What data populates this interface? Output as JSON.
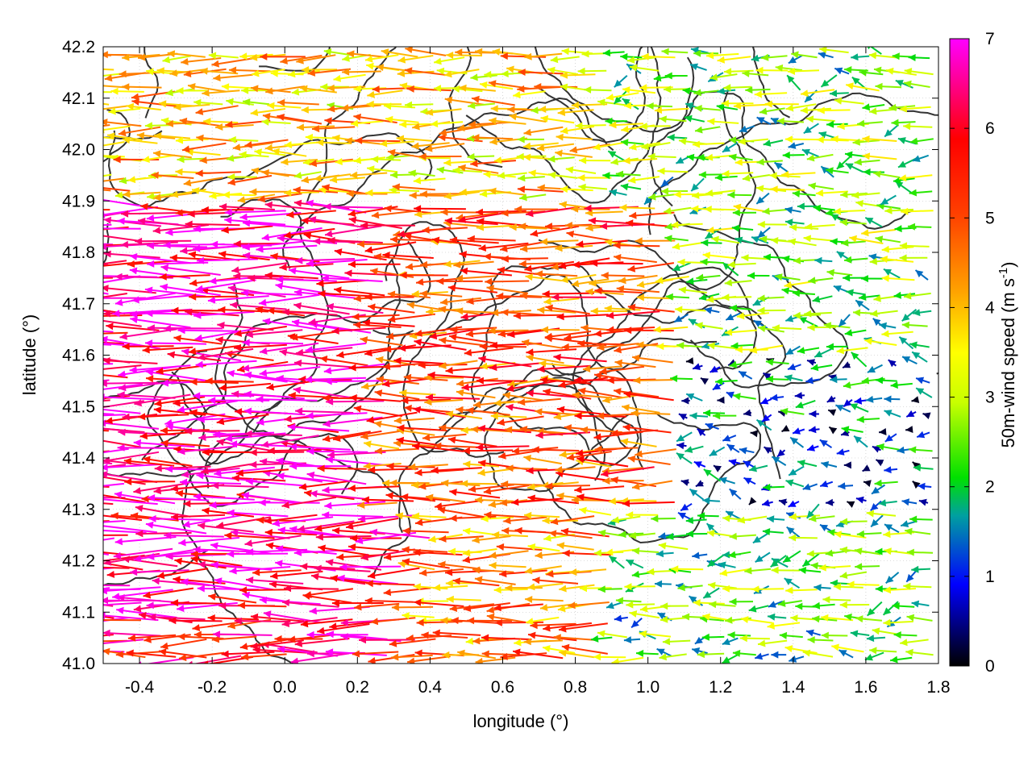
{
  "chart_data": {
    "type": "vector-field",
    "xlabel": "longitude (°)",
    "ylabel": "latitude (°)",
    "xlim": [
      -0.5,
      1.8
    ],
    "ylim": [
      41.0,
      42.2
    ],
    "xticks": [
      "-0.4",
      "-0.2",
      "0.0",
      "0.2",
      "0.4",
      "0.6",
      "0.8",
      "1.0",
      "1.2",
      "1.4",
      "1.6",
      "1.8"
    ],
    "xtick_values": [
      -0.4,
      -0.2,
      0.0,
      0.2,
      0.4,
      0.6,
      0.8,
      1.0,
      1.2,
      1.4,
      1.6,
      1.8
    ],
    "yticks": [
      "41.0",
      "41.1",
      "41.2",
      "41.3",
      "41.4",
      "41.5",
      "41.6",
      "41.7",
      "41.8",
      "41.9",
      "42.0",
      "42.1",
      "42.2"
    ],
    "ytick_values": [
      41.0,
      41.1,
      41.2,
      41.3,
      41.4,
      41.5,
      41.6,
      41.7,
      41.8,
      41.9,
      42.0,
      42.1,
      42.2
    ],
    "grid": true,
    "colorbar": {
      "label_main": "50m-wind speed (m s",
      "label_sup": "-1",
      "label_end": ")",
      "range": [
        0,
        7
      ],
      "ticks": [
        "0",
        "1",
        "2",
        "3",
        "4",
        "5",
        "6",
        "7"
      ],
      "tick_values": [
        0,
        1,
        2,
        3,
        4,
        5,
        6,
        7
      ],
      "colors": [
        "#000000",
        "#0000ff",
        "#00b0b0",
        "#00e000",
        "#c8ff00",
        "#ffff00",
        "#ffa000",
        "#ff0000",
        "#ff00ff"
      ]
    },
    "contour_color": "#333333",
    "field_description_regions": [
      {
        "lon_range": [
          -0.5,
          0.3
        ],
        "lat_range": [
          41.1,
          41.9
        ],
        "speed": 6.8,
        "direction": "west"
      },
      {
        "lon_range": [
          0.3,
          1.1
        ],
        "lat_range": [
          41.3,
          41.9
        ],
        "speed": 5.2,
        "direction": "west"
      },
      {
        "lon_range": [
          1.1,
          1.8
        ],
        "lat_range": [
          41.3,
          41.6
        ],
        "speed": 1.2,
        "direction": "west"
      },
      {
        "lon_range": [
          0.9,
          1.8
        ],
        "lat_range": [
          41.0,
          41.3
        ],
        "speed": 2.3,
        "direction": "west"
      },
      {
        "lon_range": [
          -0.5,
          0.9
        ],
        "lat_range": [
          41.9,
          42.2
        ],
        "speed": 3.8,
        "direction": "west"
      }
    ]
  }
}
